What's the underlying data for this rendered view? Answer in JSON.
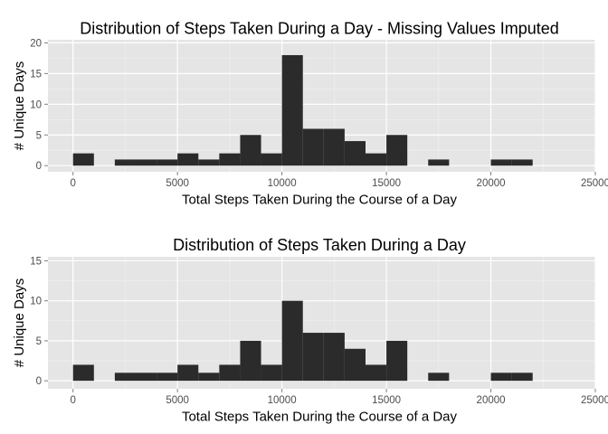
{
  "chart_data": [
    {
      "type": "bar",
      "title": "Distribution of Steps Taken During a Day - Missing Values Imputed",
      "xlabel": "Total Steps Taken During the Course of a Day",
      "ylabel": "# Unique Days",
      "xlim": [
        -1200,
        25000
      ],
      "ylim": [
        -1,
        20.5
      ],
      "xticks": [
        0,
        5000,
        10000,
        15000,
        20000,
        25000
      ],
      "yticks": [
        0,
        5,
        10,
        15,
        20
      ],
      "grid": true,
      "bin_width": 1000,
      "bins": [
        {
          "x": 0,
          "count": 2
        },
        {
          "x": 2000,
          "count": 1
        },
        {
          "x": 3000,
          "count": 1
        },
        {
          "x": 4000,
          "count": 1
        },
        {
          "x": 5000,
          "count": 2
        },
        {
          "x": 6000,
          "count": 1
        },
        {
          "x": 7000,
          "count": 2
        },
        {
          "x": 8000,
          "count": 5
        },
        {
          "x": 9000,
          "count": 2
        },
        {
          "x": 10000,
          "count": 18
        },
        {
          "x": 11000,
          "count": 6
        },
        {
          "x": 12000,
          "count": 6
        },
        {
          "x": 13000,
          "count": 4
        },
        {
          "x": 14000,
          "count": 2
        },
        {
          "x": 15000,
          "count": 5
        },
        {
          "x": 17000,
          "count": 1
        },
        {
          "x": 20000,
          "count": 1
        },
        {
          "x": 21000,
          "count": 1
        }
      ]
    },
    {
      "type": "bar",
      "title": "Distribution of Steps Taken During a Day",
      "xlabel": "Total Steps Taken During the Course of a Day",
      "ylabel": "# Unique Days",
      "xlim": [
        -1200,
        25000
      ],
      "ylim": [
        -1,
        15.5
      ],
      "xticks": [
        0,
        5000,
        10000,
        15000,
        20000,
        25000
      ],
      "yticks": [
        0,
        5,
        10,
        15
      ],
      "grid": true,
      "bin_width": 1000,
      "bins": [
        {
          "x": 0,
          "count": 2
        },
        {
          "x": 2000,
          "count": 1
        },
        {
          "x": 3000,
          "count": 1
        },
        {
          "x": 4000,
          "count": 1
        },
        {
          "x": 5000,
          "count": 2
        },
        {
          "x": 6000,
          "count": 1
        },
        {
          "x": 7000,
          "count": 2
        },
        {
          "x": 8000,
          "count": 5
        },
        {
          "x": 9000,
          "count": 2
        },
        {
          "x": 10000,
          "count": 10
        },
        {
          "x": 11000,
          "count": 6
        },
        {
          "x": 12000,
          "count": 6
        },
        {
          "x": 13000,
          "count": 4
        },
        {
          "x": 14000,
          "count": 2
        },
        {
          "x": 15000,
          "count": 5
        },
        {
          "x": 17000,
          "count": 1
        },
        {
          "x": 20000,
          "count": 1
        },
        {
          "x": 21000,
          "count": 1
        }
      ]
    }
  ],
  "colors": {
    "panel_background": "#e5e5e5",
    "grid_major": "#ffffff",
    "grid_minor": "#f2f2f2",
    "bar_fill": "#2b2b2b",
    "tick_label": "#4d4d4d",
    "tick_mark": "#7f7f7f"
  }
}
